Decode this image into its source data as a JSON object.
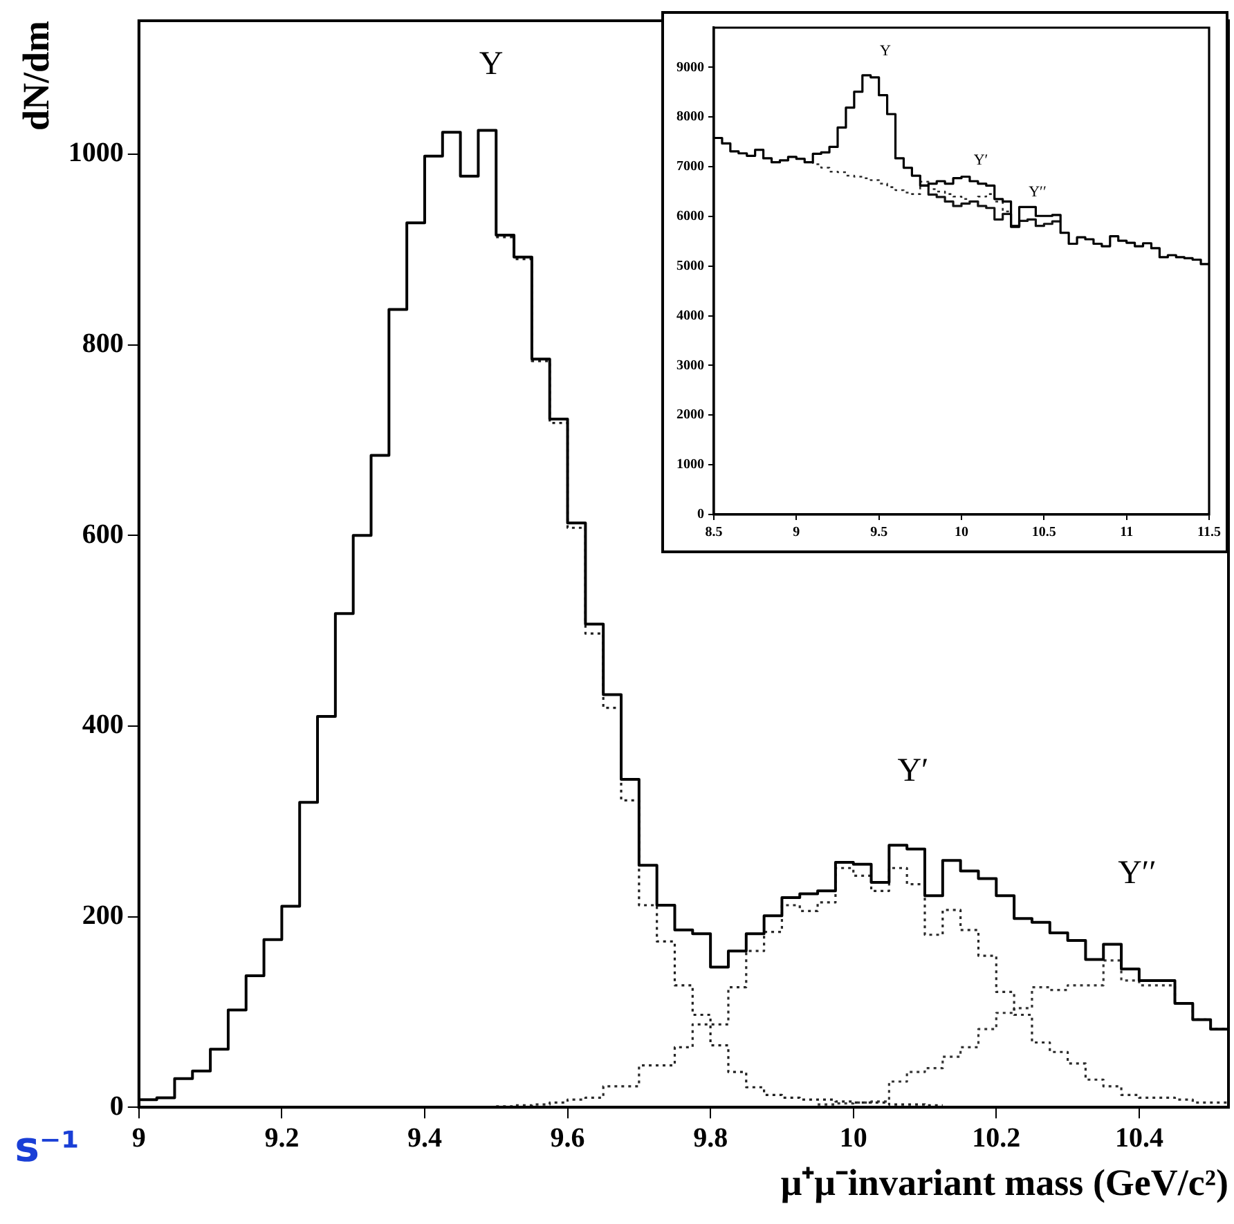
{
  "chart_data": [
    {
      "type": "histogram",
      "ylabel": "dN/dm",
      "xlabel": "μ⁺μ⁻invariant mass (GeV/c²)",
      "bins": [
        9.0,
        9.025,
        9.05,
        9.075,
        9.1,
        9.125,
        9.15,
        9.175,
        9.2,
        9.225,
        9.25,
        9.275,
        9.3,
        9.325,
        9.35,
        9.375,
        9.4,
        9.425,
        9.45,
        9.475,
        9.5,
        9.525,
        9.55,
        9.575,
        9.6,
        9.625,
        9.65,
        9.675,
        9.7,
        9.725,
        9.75,
        9.775,
        9.8,
        9.825,
        9.85,
        9.875,
        9.9,
        9.925,
        9.95,
        9.975,
        10.0,
        10.025,
        10.05,
        10.075,
        10.1,
        10.125,
        10.15,
        10.175,
        10.2,
        10.225,
        10.25,
        10.275,
        10.3,
        10.325,
        10.35,
        10.375,
        10.4,
        10.425,
        10.45,
        10.475,
        10.5,
        10.525
      ],
      "series": [
        {
          "color": "#000000",
          "line_style": "solid",
          "values": [
            8,
            10,
            30,
            38,
            61,
            102,
            138,
            176,
            211,
            320,
            410,
            518,
            600,
            684,
            837,
            928,
            998,
            1023,
            977,
            1025,
            915,
            892,
            785,
            722,
            613,
            507,
            433,
            344,
            254,
            212,
            186,
            182,
            147,
            164,
            182,
            201,
            220,
            224,
            227,
            257,
            255,
            236,
            275,
            271,
            222,
            259,
            248,
            240,
            222,
            198,
            194,
            183,
            175,
            155,
            171,
            145,
            133,
            133,
            109,
            92,
            82
          ]
        },
        {
          "type": "step",
          "color": "#202020",
          "line_style": "dotted",
          "x": [
            9.5,
            9.525,
            9.55,
            9.575,
            9.6,
            9.625,
            9.65,
            9.675,
            9.7,
            9.725,
            9.75,
            9.775,
            9.8,
            9.825,
            9.85,
            9.875,
            9.9,
            9.925,
            9.95,
            9.975,
            10.0,
            10.025,
            10.05,
            10.075,
            10.1,
            10.125
          ],
          "values": [
            913,
            890,
            783,
            718,
            608,
            497,
            419,
            322,
            212,
            174,
            128,
            97,
            65,
            37,
            21,
            13,
            10,
            8,
            8,
            6,
            5,
            5,
            3,
            3,
            2,
            2
          ]
        },
        {
          "type": "step",
          "color": "#2a2a2a",
          "line_style": "dotted",
          "x": [
            9.5,
            9.525,
            9.55,
            9.575,
            9.6,
            9.625,
            9.65,
            9.675,
            9.7,
            9.725,
            9.75,
            9.775,
            9.8,
            9.825,
            9.85,
            9.875,
            9.9,
            9.925,
            9.95,
            9.975,
            10.0,
            10.025,
            10.05,
            10.075,
            10.1,
            10.125,
            10.15,
            10.175,
            10.2,
            10.225,
            10.25,
            10.275,
            10.3,
            10.325,
            10.35,
            10.375,
            10.4,
            10.425,
            10.45,
            10.475,
            10.5,
            10.525
          ],
          "values": [
            1,
            2,
            3,
            5,
            8,
            10,
            22,
            22,
            44,
            44,
            63,
            87,
            87,
            126,
            164,
            184,
            212,
            206,
            215,
            251,
            243,
            227,
            251,
            234,
            181,
            207,
            186,
            159,
            121,
            97,
            68,
            58,
            46,
            29,
            22,
            13,
            10,
            10,
            8,
            5,
            5,
            5
          ]
        },
        {
          "type": "step",
          "color": "#353535",
          "line_style": "dotted",
          "x": [
            9.95,
            9.975,
            10.0,
            10.025,
            10.05,
            10.075,
            10.1,
            10.125,
            10.15,
            10.175,
            10.2,
            10.225,
            10.25,
            10.275,
            10.3,
            10.325,
            10.35,
            10.375,
            10.4,
            10.425,
            10.45,
            10.475,
            10.5,
            10.525
          ],
          "values": [
            3,
            4,
            5,
            6,
            27,
            37,
            41,
            53,
            63,
            82,
            99,
            104,
            126,
            123,
            128,
            128,
            154,
            133,
            128,
            128,
            109,
            92,
            82,
            82
          ]
        }
      ],
      "xlim": [
        9.0,
        10.525
      ],
      "xticks": [
        9,
        9.2,
        9.4,
        9.6,
        9.8,
        10,
        10.2,
        10.4
      ],
      "ylim": [
        0,
        1140
      ],
      "yticks": [
        0,
        200,
        400,
        600,
        800,
        1000
      ],
      "annotations": [
        "Υ",
        "Υ′",
        "Υ′′",
        "s⁻¹"
      ]
    },
    {
      "type": "histogram",
      "bins": [
        8.5,
        8.55,
        8.6,
        8.65,
        8.7,
        8.75,
        8.8,
        8.85,
        8.9,
        8.95,
        9.0,
        9.05,
        9.1,
        9.15,
        9.2,
        9.25,
        9.3,
        9.35,
        9.4,
        9.45,
        9.5,
        9.55,
        9.6,
        9.65,
        9.7,
        9.75,
        9.8,
        9.85,
        9.9,
        9.95,
        10.0,
        10.05,
        10.1,
        10.15,
        10.2,
        10.25,
        10.3,
        10.35,
        10.4,
        10.45,
        10.5,
        10.55,
        10.6,
        10.65,
        10.7,
        10.75,
        10.8,
        10.85,
        10.9,
        10.95,
        11.0,
        11.05,
        11.1,
        11.15,
        11.2,
        11.25,
        11.3,
        11.35,
        11.4,
        11.45,
        11.5
      ],
      "series": [
        {
          "color": "#000000",
          "line_style": "solid",
          "values": [
            7580,
            7470,
            7310,
            7270,
            7220,
            7340,
            7170,
            7090,
            7130,
            7200,
            7160,
            7090,
            7260,
            7290,
            7400,
            7790,
            8190,
            8510,
            8840,
            8800,
            8440,
            8060,
            7170,
            6980,
            6820,
            6620,
            6660,
            6710,
            6660,
            6770,
            6800,
            6710,
            6660,
            6620,
            6350,
            6300,
            5790,
            6190,
            6190,
            6010,
            6010,
            6030,
            5670,
            5450,
            5580,
            5540,
            5450,
            5400,
            5600,
            5510,
            5470,
            5400,
            5460,
            5360,
            5180,
            5220,
            5180,
            5160,
            5130,
            5040
          ]
        },
        {
          "type": "step",
          "color": "#151515",
          "line_style": "solid",
          "x": [
            9.75,
            9.8,
            9.85,
            9.9,
            9.95,
            10.0,
            10.05,
            10.1,
            10.15,
            10.2,
            10.25,
            10.3,
            10.35,
            10.4,
            10.45,
            10.5,
            10.55,
            10.6
          ],
          "values": [
            6620,
            6440,
            6390,
            6300,
            6210,
            6260,
            6300,
            6210,
            6170,
            5940,
            6050,
            5810,
            5910,
            5940,
            5810,
            5850,
            5900,
            5900
          ]
        },
        {
          "type": "step",
          "color": "#2a2a2a",
          "line_style": "dotted",
          "x": [
            9.05,
            9.1,
            9.15,
            9.2,
            9.25,
            9.3,
            9.35,
            9.4,
            9.45,
            9.5,
            9.55,
            9.6,
            9.65,
            9.7,
            9.75,
            9.8,
            9.85,
            9.9,
            9.95,
            10.0,
            10.05,
            10.1,
            10.15,
            10.2,
            10.25,
            10.3
          ],
          "values": [
            7090,
            7050,
            6980,
            6900,
            6890,
            6820,
            6800,
            6770,
            6730,
            6660,
            6590,
            6530,
            6480,
            6450,
            6700,
            6550,
            6500,
            6450,
            6400,
            6350,
            6300,
            6400,
            6450,
            6300,
            6100,
            6100
          ]
        }
      ],
      "xlim": [
        8.5,
        11.5
      ],
      "xticks": [
        8.5,
        9,
        9.5,
        10,
        10.5,
        11,
        11.5
      ],
      "ylim": [
        0,
        9800
      ],
      "yticks": [
        0,
        1000,
        2000,
        3000,
        4000,
        5000,
        6000,
        7000,
        8000,
        9000
      ],
      "annotations": [
        "Υ",
        "Υ′",
        "Υ′′"
      ]
    }
  ]
}
